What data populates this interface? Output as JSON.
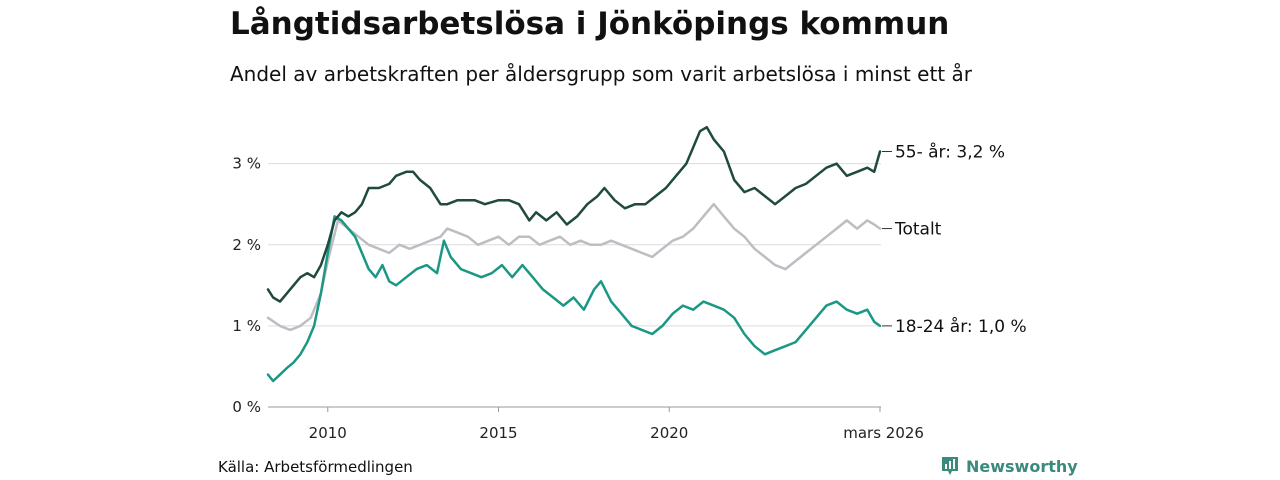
{
  "header": {
    "title": "Långtidsarbetslösa i Jönköpings kommun",
    "subtitle": "Andel av arbetskraften per åldersgrupp som varit arbetslösa i minst ett år"
  },
  "footer": {
    "source": "Källa: Arbetsförmedlingen",
    "brand": "Newsworthy"
  },
  "chart_data": {
    "type": "line",
    "title": "Långtidsarbetslösa i Jönköpings kommun",
    "subtitle": "Andel av arbetskraften per åldersgrupp som varit arbetslösa i minst ett år",
    "xlabel": "",
    "ylabel": "",
    "xlim": [
      2008.25,
      2026.2
    ],
    "ylim": [
      0,
      3.6
    ],
    "grid": true,
    "x_ticks": [
      {
        "value": 2010,
        "label": "2010"
      },
      {
        "value": 2015,
        "label": "2015"
      },
      {
        "value": 2020,
        "label": "2020"
      },
      {
        "value": 2026.17,
        "label": "mars 2026"
      }
    ],
    "y_ticks": [
      {
        "value": 0,
        "label": "0 %"
      },
      {
        "value": 1,
        "label": "1 %"
      },
      {
        "value": 2,
        "label": "2 %"
      },
      {
        "value": 3,
        "label": "3 %"
      }
    ],
    "colors": {
      "age55": "#1f4a3d",
      "total": "#bdbdc3",
      "age1824": "#1a9884",
      "grid": "#dcdcdc",
      "axis": "#9a9a9a",
      "brand": "#3a8a7d"
    },
    "series": [
      {
        "name": "55- år",
        "key": "age55",
        "end_label": "55- år: 3,2 %",
        "x": [
          2008.25,
          2008.4,
          2008.6,
          2008.8,
          2009.0,
          2009.2,
          2009.4,
          2009.6,
          2009.8,
          2010.0,
          2010.2,
          2010.4,
          2010.6,
          2010.8,
          2011.0,
          2011.2,
          2011.5,
          2011.8,
          2012.0,
          2012.3,
          2012.5,
          2012.7,
          2013.0,
          2013.3,
          2013.5,
          2013.8,
          2014.0,
          2014.3,
          2014.6,
          2015.0,
          2015.3,
          2015.6,
          2015.9,
          2016.1,
          2016.4,
          2016.7,
          2017.0,
          2017.3,
          2017.6,
          2017.9,
          2018.1,
          2018.4,
          2018.7,
          2019.0,
          2019.3,
          2019.6,
          2019.9,
          2020.2,
          2020.5,
          2020.7,
          2020.9,
          2021.1,
          2021.3,
          2021.6,
          2021.9,
          2022.2,
          2022.5,
          2022.8,
          2023.1,
          2023.4,
          2023.7,
          2024.0,
          2024.3,
          2024.6,
          2024.9,
          2025.2,
          2025.5,
          2025.8,
          2026.0,
          2026.17
        ],
        "values": [
          1.45,
          1.35,
          1.3,
          1.4,
          1.5,
          1.6,
          1.65,
          1.6,
          1.75,
          2.0,
          2.3,
          2.4,
          2.35,
          2.4,
          2.5,
          2.7,
          2.7,
          2.75,
          2.85,
          2.9,
          2.9,
          2.8,
          2.7,
          2.5,
          2.5,
          2.55,
          2.55,
          2.55,
          2.5,
          2.55,
          2.55,
          2.5,
          2.3,
          2.4,
          2.3,
          2.4,
          2.25,
          2.35,
          2.5,
          2.6,
          2.7,
          2.55,
          2.45,
          2.5,
          2.5,
          2.6,
          2.7,
          2.85,
          3.0,
          3.2,
          3.4,
          3.45,
          3.3,
          3.15,
          2.8,
          2.65,
          2.7,
          2.6,
          2.5,
          2.6,
          2.7,
          2.75,
          2.85,
          2.95,
          3.0,
          2.85,
          2.9,
          2.95,
          2.9,
          3.15
        ]
      },
      {
        "name": "Totalt",
        "key": "total",
        "end_label": "Totalt",
        "x": [
          2008.25,
          2008.6,
          2008.9,
          2009.2,
          2009.5,
          2009.8,
          2010.0,
          2010.3,
          2010.6,
          2010.9,
          2011.2,
          2011.5,
          2011.8,
          2012.1,
          2012.4,
          2012.7,
          2013.0,
          2013.3,
          2013.5,
          2013.8,
          2014.1,
          2014.4,
          2014.7,
          2015.0,
          2015.3,
          2015.6,
          2015.9,
          2016.2,
          2016.5,
          2016.8,
          2017.1,
          2017.4,
          2017.7,
          2018.0,
          2018.3,
          2018.6,
          2018.9,
          2019.2,
          2019.5,
          2019.8,
          2020.1,
          2020.4,
          2020.7,
          2021.0,
          2021.3,
          2021.6,
          2021.9,
          2022.2,
          2022.5,
          2022.8,
          2023.1,
          2023.4,
          2023.7,
          2024.0,
          2024.3,
          2024.6,
          2024.9,
          2025.2,
          2025.5,
          2025.8,
          2026.0,
          2026.17
        ],
        "values": [
          1.1,
          1.0,
          0.95,
          1.0,
          1.1,
          1.4,
          1.8,
          2.3,
          2.2,
          2.1,
          2.0,
          1.95,
          1.9,
          2.0,
          1.95,
          2.0,
          2.05,
          2.1,
          2.2,
          2.15,
          2.1,
          2.0,
          2.05,
          2.1,
          2.0,
          2.1,
          2.1,
          2.0,
          2.05,
          2.1,
          2.0,
          2.05,
          2.0,
          2.0,
          2.05,
          2.0,
          1.95,
          1.9,
          1.85,
          1.95,
          2.05,
          2.1,
          2.2,
          2.35,
          2.5,
          2.35,
          2.2,
          2.1,
          1.95,
          1.85,
          1.75,
          1.7,
          1.8,
          1.9,
          2.0,
          2.1,
          2.2,
          2.3,
          2.2,
          2.3,
          2.25,
          2.2
        ]
      },
      {
        "name": "18-24 år",
        "key": "age1824",
        "end_label": "18-24 år: 1,0 %",
        "x": [
          2008.25,
          2008.4,
          2008.6,
          2008.8,
          2009.0,
          2009.2,
          2009.4,
          2009.6,
          2009.8,
          2010.0,
          2010.2,
          2010.4,
          2010.6,
          2010.8,
          2011.0,
          2011.2,
          2011.4,
          2011.6,
          2011.8,
          2012.0,
          2012.3,
          2012.6,
          2012.9,
          2013.2,
          2013.4,
          2013.6,
          2013.9,
          2014.2,
          2014.5,
          2014.8,
          2015.1,
          2015.4,
          2015.7,
          2016.0,
          2016.3,
          2016.6,
          2016.9,
          2017.2,
          2017.5,
          2017.8,
          2018.0,
          2018.3,
          2018.6,
          2018.9,
          2019.2,
          2019.5,
          2019.8,
          2020.1,
          2020.4,
          2020.7,
          2021.0,
          2021.3,
          2021.6,
          2021.9,
          2022.2,
          2022.5,
          2022.8,
          2023.1,
          2023.4,
          2023.7,
          2024.0,
          2024.3,
          2024.6,
          2024.9,
          2025.2,
          2025.5,
          2025.8,
          2026.0,
          2026.17
        ],
        "values": [
          0.4,
          0.32,
          0.4,
          0.48,
          0.55,
          0.65,
          0.8,
          1.0,
          1.4,
          1.9,
          2.35,
          2.3,
          2.2,
          2.1,
          1.9,
          1.7,
          1.6,
          1.75,
          1.55,
          1.5,
          1.6,
          1.7,
          1.75,
          1.65,
          2.05,
          1.85,
          1.7,
          1.65,
          1.6,
          1.65,
          1.75,
          1.6,
          1.75,
          1.6,
          1.45,
          1.35,
          1.25,
          1.35,
          1.2,
          1.45,
          1.55,
          1.3,
          1.15,
          1.0,
          0.95,
          0.9,
          1.0,
          1.15,
          1.25,
          1.2,
          1.3,
          1.25,
          1.2,
          1.1,
          0.9,
          0.75,
          0.65,
          0.7,
          0.75,
          0.8,
          0.95,
          1.1,
          1.25,
          1.3,
          1.2,
          1.15,
          1.2,
          1.05,
          1.0
        ]
      }
    ]
  }
}
